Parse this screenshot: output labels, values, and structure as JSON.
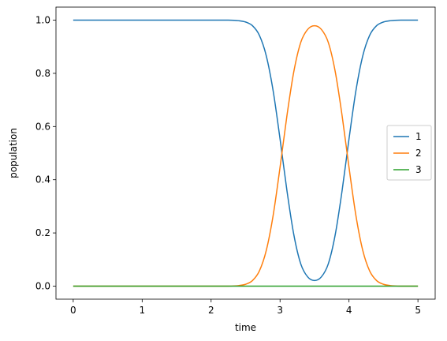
{
  "chart_data": {
    "type": "line",
    "title": "",
    "xlabel": "time",
    "ylabel": "population",
    "xlim": [
      -0.25,
      5.25
    ],
    "ylim": [
      -0.049,
      1.049
    ],
    "xticks": [
      0,
      1,
      2,
      3,
      4,
      5
    ],
    "xtick_labels": [
      "0",
      "1",
      "2",
      "3",
      "4",
      "5"
    ],
    "yticks": [
      0.0,
      0.2,
      0.4,
      0.6,
      0.8,
      1.0
    ],
    "ytick_labels": [
      "0.0",
      "0.2",
      "0.4",
      "0.6",
      "0.8",
      "1.0"
    ],
    "grid": false,
    "legend_position": "center-right",
    "x": [
      0,
      0.5,
      1,
      1.5,
      2,
      2.25,
      2.4,
      2.5,
      2.6,
      2.7,
      2.8,
      2.9,
      3.0,
      3.1,
      3.2,
      3.3,
      3.4,
      3.5,
      3.6,
      3.7,
      3.8,
      3.9,
      4.0,
      4.1,
      4.2,
      4.3,
      4.4,
      4.5,
      4.6,
      4.75,
      5
    ],
    "series": [
      {
        "name": "1",
        "color": "#1f77b4",
        "values": [
          1,
          1,
          1,
          1,
          1,
          1,
          0.998,
          0.993,
          0.979,
          0.943,
          0.866,
          0.734,
          0.553,
          0.359,
          0.193,
          0.084,
          0.035,
          0.021,
          0.035,
          0.084,
          0.193,
          0.359,
          0.553,
          0.734,
          0.866,
          0.943,
          0.979,
          0.993,
          0.998,
          1,
          1
        ]
      },
      {
        "name": "2",
        "color": "#ff7f0e",
        "values": [
          0,
          0,
          0,
          0,
          0,
          0,
          0.002,
          0.007,
          0.021,
          0.057,
          0.134,
          0.266,
          0.447,
          0.641,
          0.807,
          0.916,
          0.965,
          0.979,
          0.965,
          0.916,
          0.807,
          0.641,
          0.447,
          0.266,
          0.134,
          0.057,
          0.021,
          0.007,
          0.002,
          0,
          0
        ]
      },
      {
        "name": "3",
        "color": "#2ca02c",
        "values": [
          0,
          0,
          0,
          0,
          0,
          0,
          0,
          0,
          0,
          0,
          0,
          0,
          0,
          0,
          0,
          0,
          0,
          0,
          0,
          0,
          0,
          0,
          0,
          0,
          0,
          0,
          0,
          0,
          0,
          0,
          0
        ]
      }
    ]
  }
}
